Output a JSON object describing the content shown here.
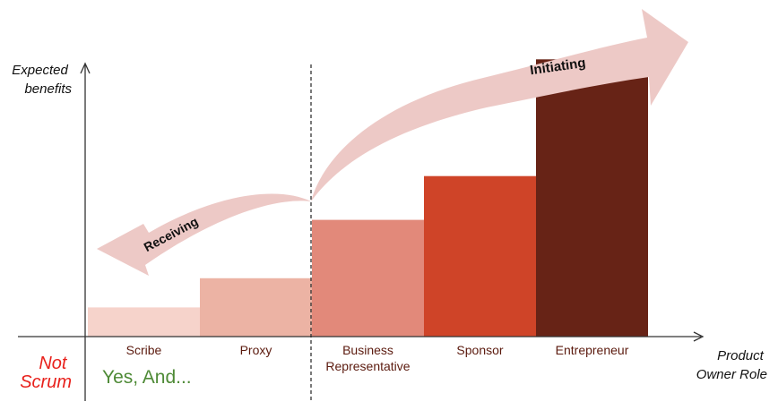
{
  "chart_data": {
    "type": "bar",
    "title": "",
    "xlabel": "Product Owner Role",
    "ylabel": "Expected benefits",
    "xlabel_lines": [
      "Product",
      "Owner Role"
    ],
    "ylabel_lines": [
      "Expected",
      "benefits"
    ],
    "categories": [
      "Scribe",
      "Proxy",
      "Business Representative",
      "Sponsor",
      "Entrepreneur"
    ],
    "category_lines": [
      [
        "Scribe"
      ],
      [
        "Proxy"
      ],
      [
        "Business",
        "Representative"
      ],
      [
        "Sponsor"
      ],
      [
        "Entrepreneur"
      ]
    ],
    "values": [
      1,
      2,
      4,
      5.5,
      9.5
    ],
    "ylim": [
      0,
      10
    ],
    "bar_colors": [
      "#F6D3CB",
      "#ECB3A4",
      "#E2897A",
      "#CF4428",
      "#672316"
    ],
    "label_color": "#5B1A0E",
    "annotations": {
      "receiving": "Receiving",
      "initiating": "Initiating",
      "not_scrum_lines": [
        "Not",
        "Scrum"
      ],
      "yes_and": "Yes, And..."
    },
    "colors": {
      "arrow_fill": "#EDC9C6",
      "not_scrum": "#E8211C",
      "yes_and": "#4E8A36",
      "axis": "#333333"
    }
  }
}
